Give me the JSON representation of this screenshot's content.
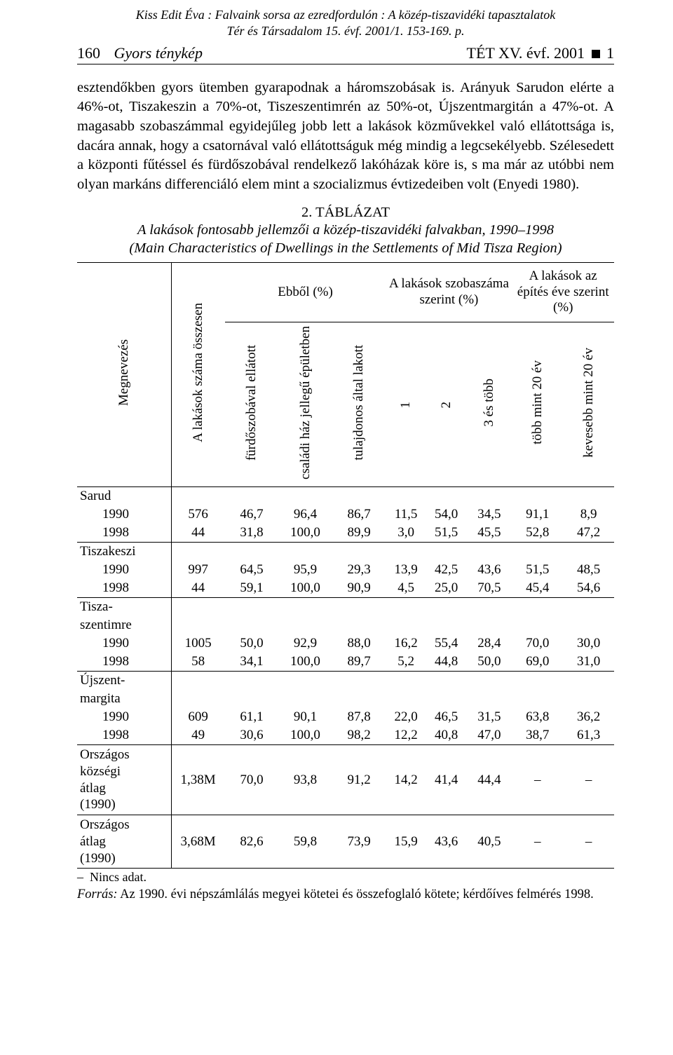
{
  "ref_header_line1": "Kiss Edit Éva : Falvaink sorsa az ezredfordulón : A közép-tiszavidéki tapasztalatok",
  "ref_header_line2": "Tér és Társadalom 15. évf. 2001/1. 153-169. p.",
  "running": {
    "page_number": "160",
    "section": "Gyors ténykép",
    "journal": "TÉT XV. évf. 2001",
    "issue_suffix": "1"
  },
  "paragraph": "esztendőkben gyors ütemben gyarapodnak a háromszobásak is. Arányuk Sarudon elérte a 46%-ot, Tiszakeszin a 70%-ot, Tiszeszentimrén az 50%-ot, Újszentmargitán a 47%-ot. A magasabb szobaszámmal egyidejűleg jobb lett a lakások közművekkel való ellátottsága is, dacára annak, hogy a csatornával való ellátottságuk még mindig a legcsekélyebb. Szélesedett a központi fűtéssel és fürdőszobával rendelkező lakóházak köre is, s ma már az utóbbi nem olyan markáns differenciáló elem mint a szocializmus évtizedeiben volt (Enyedi 1980).",
  "table": {
    "number": "2. TÁBLÁZAT",
    "title_it_line1": "A lakások fontosabb jellemzői a közép-tiszavidéki falvakban, 1990–1998",
    "title_it_line2": "(Main Characteristics of Dwellings in the Settlements of Mid Tisza Region)",
    "col_widths_pct": [
      17.5,
      10,
      10,
      10,
      10,
      7.5,
      7.5,
      8.5,
      9.5,
      9.5
    ],
    "head": {
      "megnevezes": "Megnevezés",
      "lakas_osszes": "A lakások száma összesen",
      "ebbol": "Ebből (%)",
      "szobaszam": "A lakások szobaszáma szerint (%)",
      "epites_eve": "A lakások az építés éve szerint (%)",
      "furdoszoba": "fürdőszobával ellátott",
      "csaladi": "családi ház jellegű épületben",
      "tulajdonos": "tulajdonos által lakott",
      "sz1": "1",
      "sz2": "2",
      "sz3": "3 és több",
      "tobb20": "több mint 20 év",
      "kevesebb20": "kevesebb mint 20 év"
    },
    "groups": [
      {
        "label": "Sarud",
        "rows": [
          {
            "year": "1990",
            "cells": [
              "576",
              "46,7",
              "96,4",
              "86,7",
              "11,5",
              "54,0",
              "34,5",
              "91,1",
              "8,9"
            ]
          },
          {
            "year": "1998",
            "cells": [
              "44",
              "31,8",
              "100,0",
              "89,9",
              "3,0",
              "51,5",
              "45,5",
              "52,8",
              "47,2"
            ]
          }
        ]
      },
      {
        "label": "Tiszakeszi",
        "rows": [
          {
            "year": "1990",
            "cells": [
              "997",
              "64,5",
              "95,9",
              "29,3",
              "13,9",
              "42,5",
              "43,6",
              "51,5",
              "48,5"
            ]
          },
          {
            "year": "1998",
            "cells": [
              "44",
              "59,1",
              "100,0",
              "90,9",
              "4,5",
              "25,0",
              "70,5",
              "45,4",
              "54,6"
            ]
          }
        ]
      },
      {
        "label_lines": [
          "Tisza-",
          "szentimre"
        ],
        "rows": [
          {
            "year": "1990",
            "cells": [
              "1005",
              "50,0",
              "92,9",
              "88,0",
              "16,2",
              "55,4",
              "28,4",
              "70,0",
              "30,0"
            ]
          },
          {
            "year": "1998",
            "cells": [
              "58",
              "34,1",
              "100,0",
              "89,7",
              "5,2",
              "44,8",
              "50,0",
              "69,0",
              "31,0"
            ]
          }
        ]
      },
      {
        "label_lines": [
          "Újszent-",
          "margita"
        ],
        "rows": [
          {
            "year": "1990",
            "cells": [
              "609",
              "61,1",
              "90,1",
              "87,8",
              "22,0",
              "46,5",
              "31,5",
              "63,8",
              "36,2"
            ]
          },
          {
            "year": "1998",
            "cells": [
              "49",
              "30,6",
              "100,0",
              "98,2",
              "12,2",
              "40,8",
              "47,0",
              "38,7",
              "61,3"
            ]
          }
        ]
      },
      {
        "label_lines": [
          "Országos",
          "községi",
          "átlag",
          "(1990)"
        ],
        "single_row": {
          "cells": [
            "1,38M",
            "70,0",
            "93,8",
            "91,2",
            "14,2",
            "41,4",
            "44,4",
            "–",
            "–"
          ]
        }
      },
      {
        "label_lines": [
          "Országos",
          "átlag",
          "(1990)"
        ],
        "single_row": {
          "cells": [
            "3,68M",
            "82,6",
            "59,8",
            "73,9",
            "15,9",
            "43,6",
            "40,5",
            "–",
            "–"
          ]
        }
      }
    ]
  },
  "footnote_dash": "–",
  "footnote_text": "Nincs adat.",
  "source_label": "Forrás:",
  "source_text": " Az 1990. évi népszámlálás megyei kötetei és összefoglaló kötete; kérdőíves felmérés 1998."
}
